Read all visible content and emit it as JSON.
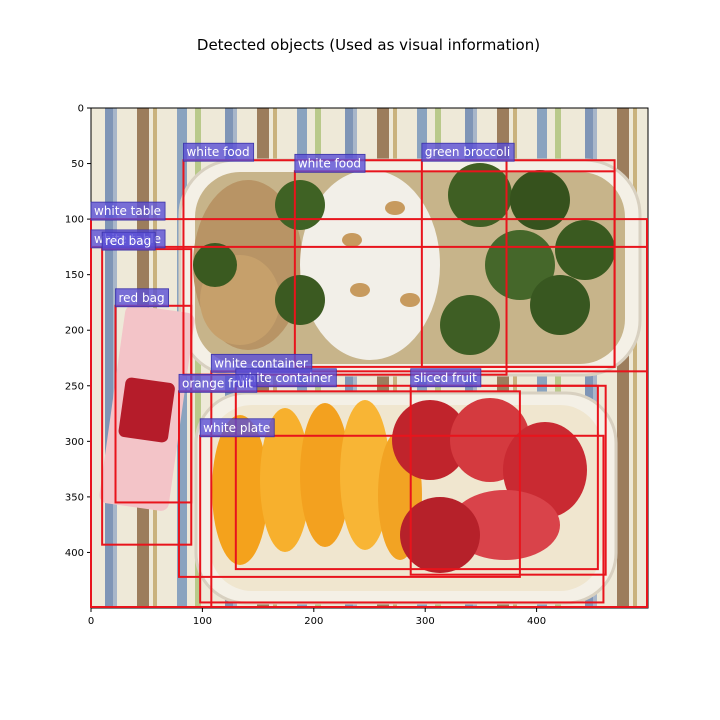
{
  "figure": {
    "title": "Detected objects (Used as visual information)"
  },
  "chart_data": {
    "type": "image_with_bounding_boxes",
    "image_content": "bento lunch box: broccoli, rice with peanuts, cooked vegetables, orange slices, strawberries, KitKat wrapper on striped tablecloth",
    "image_size": [
      500,
      450
    ],
    "xlim": [
      0,
      500
    ],
    "ylim": [
      450,
      0
    ],
    "x_ticks": [
      0,
      100,
      200,
      300,
      400
    ],
    "y_ticks": [
      0,
      50,
      100,
      150,
      200,
      250,
      300,
      350,
      400
    ],
    "box_color": "#e8141c",
    "label_bg_color": "#5a4fd6",
    "label_text_color": "#ffffff",
    "boxes": [
      {
        "label": "white food",
        "x0": 83,
        "y0": 47,
        "x1": 373,
        "y1": 240
      },
      {
        "label": "white food",
        "x0": 183,
        "y0": 57,
        "x1": 470,
        "y1": 233
      },
      {
        "label": "green broccoli",
        "x0": 297,
        "y0": 47,
        "x1": 470,
        "y1": 233
      },
      {
        "label": "white table",
        "x0": 0,
        "y0": 100,
        "x1": 500,
        "y1": 450
      },
      {
        "label": "white table",
        "x0": 0,
        "y0": 125,
        "x1": 500,
        "y1": 450
      },
      {
        "label": "red bag",
        "x0": 10,
        "y0": 127,
        "x1": 90,
        "y1": 393
      },
      {
        "label": "red bag",
        "x0": 22,
        "y0": 178,
        "x1": 90,
        "y1": 355
      },
      {
        "label": "white container",
        "x0": 108,
        "y0": 237,
        "x1": 500,
        "y1": 450
      },
      {
        "label": "white container",
        "x0": 130,
        "y0": 250,
        "x1": 455,
        "y1": 415
      },
      {
        "label": "sliced fruit",
        "x0": 287,
        "y0": 250,
        "x1": 462,
        "y1": 420
      },
      {
        "label": "orange fruit",
        "x0": 79,
        "y0": 255,
        "x1": 385,
        "y1": 422
      },
      {
        "label": "white plate",
        "x0": 98,
        "y0": 295,
        "x1": 460,
        "y1": 445
      }
    ]
  }
}
